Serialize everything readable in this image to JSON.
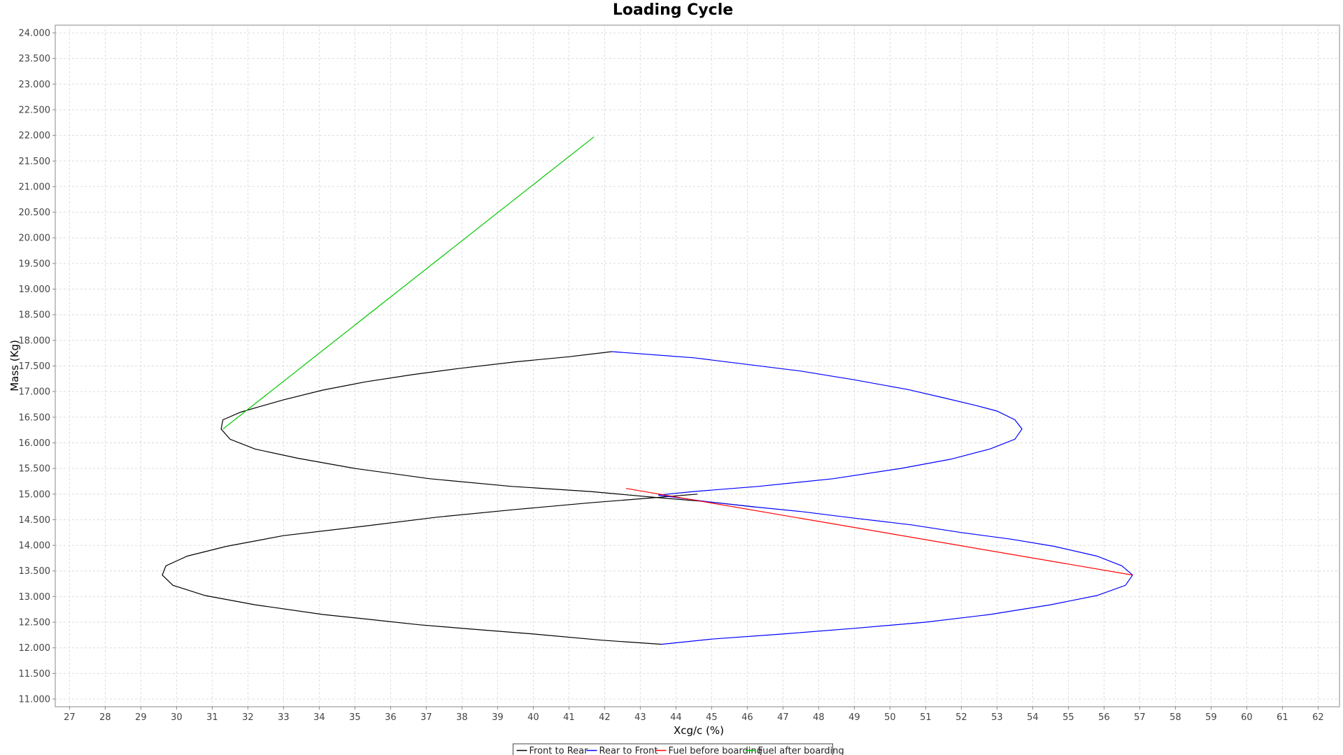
{
  "chart_data": {
    "type": "line",
    "title": "Loading Cycle",
    "xlabel": "Xcg/c (%)",
    "ylabel": "Mass (Kg)",
    "xlim": [
      26.6,
      62.6
    ],
    "ylim": [
      10.85,
      24.15
    ],
    "x_ticks": [
      27,
      28,
      29,
      30,
      31,
      32,
      33,
      34,
      35,
      36,
      37,
      38,
      39,
      40,
      41,
      42,
      43,
      44,
      45,
      46,
      47,
      48,
      49,
      50,
      51,
      52,
      53,
      54,
      55,
      56,
      57,
      58,
      59,
      60,
      61,
      62
    ],
    "y_ticks": [
      11.0,
      11.5,
      12.0,
      12.5,
      13.0,
      13.5,
      14.0,
      14.5,
      15.0,
      15.5,
      16.0,
      16.5,
      17.0,
      17.5,
      18.0,
      18.5,
      19.0,
      19.5,
      20.0,
      20.5,
      21.0,
      21.5,
      22.0,
      22.5,
      23.0,
      23.5,
      24.0
    ],
    "y_tick_labels": [
      "11.000",
      "11.500",
      "12.000",
      "12.500",
      "13.000",
      "13.500",
      "14.000",
      "14.500",
      "15.000",
      "15.500",
      "16.000",
      "16.500",
      "17.000",
      "17.500",
      "18.000",
      "18.500",
      "19.000",
      "19.500",
      "20.000",
      "20.500",
      "21.000",
      "21.500",
      "22.000",
      "22.500",
      "23.000",
      "23.500",
      "24.000"
    ],
    "grid": true,
    "legend_position": "bottom-center",
    "series": [
      {
        "name": "Front to Rear",
        "color": "#000000",
        "segments": [
          [
            [
              42.2,
              17.78
            ],
            [
              41.0,
              17.68
            ],
            [
              39.5,
              17.58
            ],
            [
              37.9,
              17.45
            ],
            [
              36.6,
              17.33
            ],
            [
              35.3,
              17.19
            ],
            [
              34.1,
              17.03
            ],
            [
              33.0,
              16.84
            ],
            [
              32.3,
              16.7
            ],
            [
              31.8,
              16.6
            ],
            [
              31.3,
              16.45
            ],
            [
              31.25,
              16.27
            ],
            [
              31.5,
              16.07
            ],
            [
              32.2,
              15.88
            ],
            [
              33.4,
              15.7
            ],
            [
              35.0,
              15.5
            ],
            [
              37.1,
              15.3
            ],
            [
              39.4,
              15.15
            ],
            [
              41.6,
              15.05
            ],
            [
              43.5,
              14.93
            ],
            [
              44.9,
              14.85
            ],
            [
              46.2,
              14.75
            ]
          ],
          [
            [
              43.6,
              12.07
            ],
            [
              41.9,
              12.15
            ],
            [
              40.0,
              12.27
            ],
            [
              38.2,
              12.37
            ],
            [
              36.8,
              12.45
            ],
            [
              35.2,
              12.57
            ],
            [
              34.1,
              12.65
            ],
            [
              32.2,
              12.84
            ],
            [
              30.8,
              13.02
            ],
            [
              29.9,
              13.22
            ],
            [
              29.6,
              13.42
            ],
            [
              29.7,
              13.6
            ],
            [
              30.3,
              13.79
            ],
            [
              31.4,
              13.98
            ],
            [
              33.0,
              14.19
            ],
            [
              35.2,
              14.37
            ],
            [
              37.3,
              14.55
            ],
            [
              39.5,
              14.7
            ],
            [
              41.6,
              14.83
            ],
            [
              43.4,
              14.93
            ],
            [
              44.6,
              15.0
            ]
          ]
        ]
      },
      {
        "name": "Rear to Front",
        "color": "#0000ff",
        "segments": [
          [
            [
              42.2,
              17.78
            ],
            [
              44.5,
              17.66
            ],
            [
              46.0,
              17.53
            ],
            [
              47.5,
              17.4
            ],
            [
              49.0,
              17.23
            ],
            [
              50.5,
              17.04
            ],
            [
              51.5,
              16.88
            ],
            [
              52.4,
              16.73
            ],
            [
              53.0,
              16.62
            ],
            [
              53.5,
              16.45
            ],
            [
              53.7,
              16.27
            ],
            [
              53.5,
              16.07
            ],
            [
              52.8,
              15.88
            ],
            [
              51.7,
              15.68
            ],
            [
              50.3,
              15.5
            ],
            [
              48.4,
              15.3
            ],
            [
              46.3,
              15.15
            ],
            [
              44.5,
              15.05
            ],
            [
              43.5,
              14.98
            ],
            [
              44.9,
              14.85
            ],
            [
              46.2,
              14.75
            ],
            [
              47.5,
              14.66
            ],
            [
              49.0,
              14.53
            ],
            [
              50.6,
              14.4
            ],
            [
              52.0,
              14.25
            ],
            [
              53.4,
              14.12
            ],
            [
              54.6,
              13.98
            ],
            [
              55.8,
              13.79
            ],
            [
              56.5,
              13.6
            ],
            [
              56.8,
              13.42
            ],
            [
              56.6,
              13.22
            ],
            [
              55.8,
              13.02
            ],
            [
              54.5,
              12.84
            ],
            [
              52.8,
              12.65
            ],
            [
              51.0,
              12.5
            ],
            [
              49.0,
              12.38
            ],
            [
              47.0,
              12.27
            ],
            [
              45.0,
              12.17
            ],
            [
              43.6,
              12.07
            ]
          ]
        ]
      },
      {
        "name": "Fuel before boarding",
        "color": "#ff0000",
        "segments": [
          [
            [
              42.6,
              15.11
            ],
            [
              56.8,
              13.42
            ]
          ]
        ]
      },
      {
        "name": "Fuel after boarding",
        "color": "#00c800",
        "segments": [
          [
            [
              31.3,
              16.27
            ],
            [
              41.7,
              21.97
            ]
          ]
        ]
      }
    ]
  }
}
